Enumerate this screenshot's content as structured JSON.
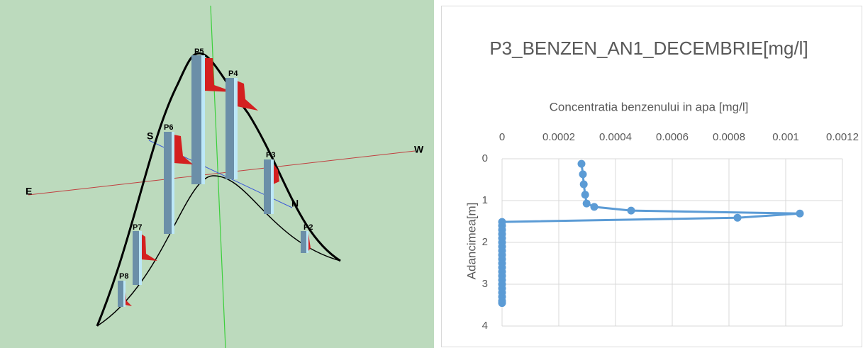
{
  "diagram": {
    "labels": [
      "P5",
      "P4",
      "P6",
      "S",
      "W",
      "P3",
      "E",
      "N",
      "P7",
      "P2",
      "P8"
    ]
  },
  "chart_data": {
    "type": "line",
    "title": "P3_BENZEN_AN1_DECEMBRIE[mg/l]",
    "x_label": "Concentratia benzenului in apa [mg/l]",
    "y_label": "Adancimea[m]",
    "x": [
      0.00028,
      0.000285,
      0.000288,
      0.000293,
      0.000298,
      0.000325,
      0.000455,
      0.00105,
      0.00083,
      0,
      0,
      0,
      0,
      0,
      0,
      0,
      0,
      0,
      0,
      0,
      0,
      0,
      0,
      0,
      0,
      0,
      0,
      0,
      0,
      0
    ],
    "values": [
      0.12,
      0.37,
      0.61,
      0.86,
      1.07,
      1.15,
      1.24,
      1.31,
      1.41,
      1.51,
      1.6,
      1.7,
      1.8,
      1.9,
      2.0,
      2.1,
      2.2,
      2.3,
      2.4,
      2.5,
      2.6,
      2.7,
      2.8,
      2.9,
      3.0,
      3.1,
      3.2,
      3.3,
      3.4,
      3.45
    ],
    "color": "#5b9bd5",
    "xlim": [
      0,
      0.0012
    ],
    "xticks": [
      0,
      0.0002,
      0.0004,
      0.0006,
      0.0008,
      0.001,
      0.0012
    ],
    "ylim": [
      0,
      4
    ],
    "yticks": [
      0,
      1,
      2,
      3,
      4
    ],
    "y_inverted": true,
    "x_axis_position": "top",
    "grid": true
  }
}
